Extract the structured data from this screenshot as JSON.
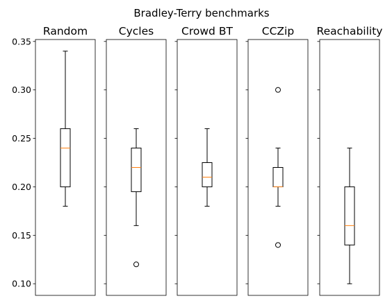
{
  "title": "Bradley-Terry benchmarks",
  "chart_data": {
    "type": "box",
    "title": "Bradley-Terry benchmarks",
    "ylim": [
      0.088,
      0.352
    ],
    "yticks": [
      0.1,
      0.15,
      0.2,
      0.25,
      0.3,
      0.35
    ],
    "ytick_labels": [
      "0.10",
      "0.15",
      "0.20",
      "0.25",
      "0.30",
      "0.35"
    ],
    "shared_y": true,
    "grid": false,
    "colors": {
      "box": "#000000",
      "median": "#ff7f0e",
      "flier": "#000000"
    },
    "panels": [
      {
        "name": "Random",
        "whisker_low": 0.18,
        "q1": 0.2,
        "median": 0.24,
        "q3": 0.26,
        "whisker_high": 0.34,
        "fliers": []
      },
      {
        "name": "Cycles",
        "whisker_low": 0.16,
        "q1": 0.195,
        "median": 0.22,
        "q3": 0.24,
        "whisker_high": 0.26,
        "fliers": [
          0.12
        ]
      },
      {
        "name": "Crowd BT",
        "whisker_low": 0.18,
        "q1": 0.2,
        "median": 0.21,
        "q3": 0.225,
        "whisker_high": 0.26,
        "fliers": []
      },
      {
        "name": "CCZip",
        "whisker_low": 0.18,
        "q1": 0.2,
        "median": 0.2,
        "q3": 0.22,
        "whisker_high": 0.24,
        "fliers": [
          0.14,
          0.3
        ]
      },
      {
        "name": "Reachability",
        "whisker_low": 0.1,
        "q1": 0.14,
        "median": 0.16,
        "q3": 0.2,
        "whisker_high": 0.24,
        "fliers": []
      }
    ]
  }
}
